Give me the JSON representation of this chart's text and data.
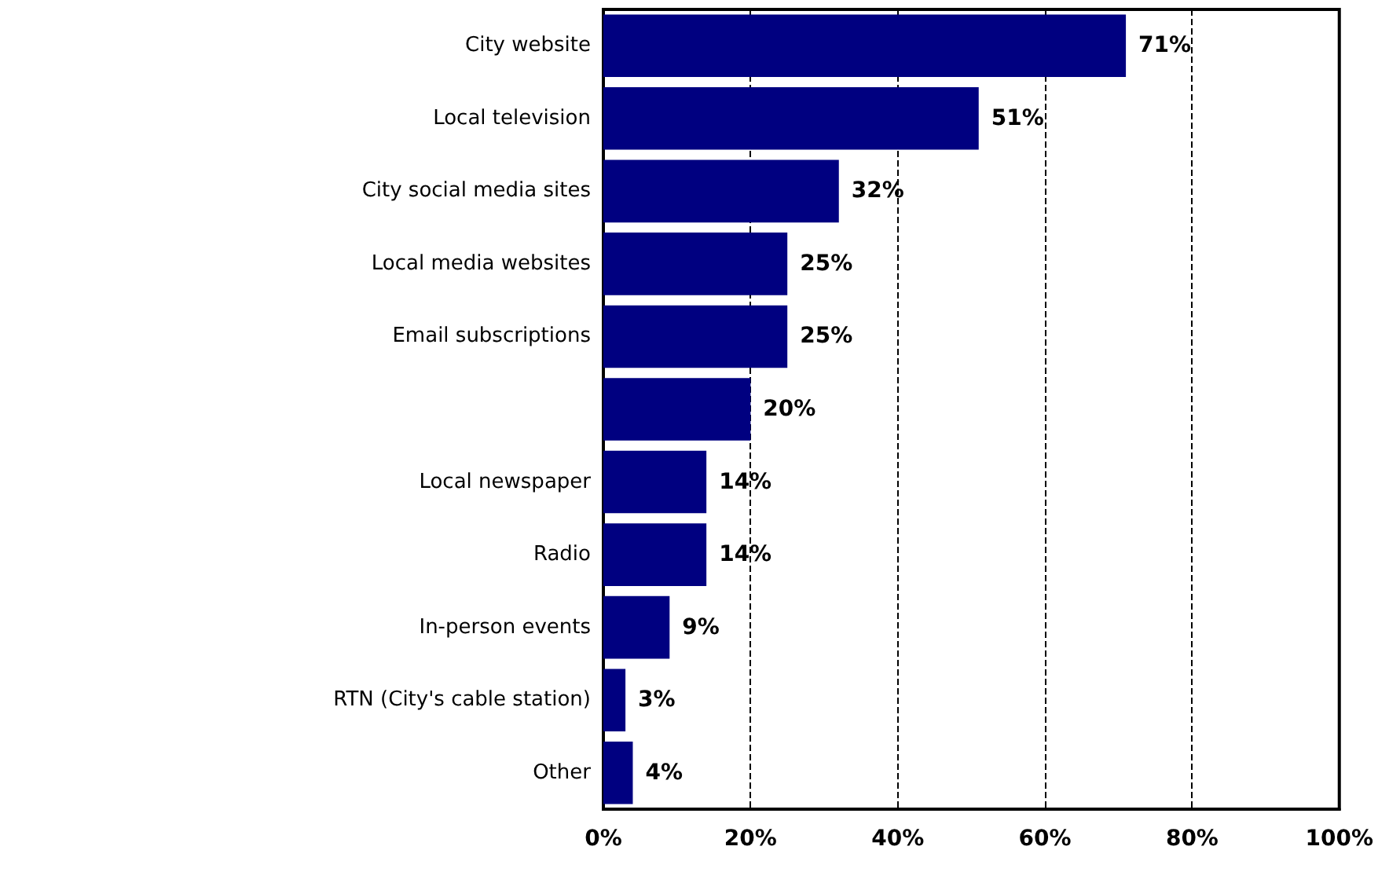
{
  "chart_data": {
    "type": "bar",
    "orientation": "horizontal",
    "categories": [
      "City website",
      "Local television",
      "City social media sites",
      "Local media websites",
      "Email subscriptions",
      null,
      "Local newspaper",
      "Radio",
      "In-person events",
      "RTN (City's cable station)",
      "Other"
    ],
    "values": [
      71,
      51,
      32,
      25,
      25,
      20,
      14,
      14,
      9,
      3,
      4
    ],
    "value_labels": [
      "71%",
      "51%",
      "32%",
      "25%",
      "25%",
      "20%",
      "14%",
      "14%",
      "9%",
      "3%",
      "4%"
    ],
    "color": "#000080",
    "xlim": [
      0,
      100
    ],
    "xticks": [
      {
        "value": 0,
        "label": "0%"
      },
      {
        "value": 20,
        "label": "20%"
      },
      {
        "value": 40,
        "label": "40%"
      },
      {
        "value": 60,
        "label": "60%"
      },
      {
        "value": 80,
        "label": "80%"
      },
      {
        "value": 100,
        "label": "100%"
      }
    ],
    "grid": "x"
  }
}
